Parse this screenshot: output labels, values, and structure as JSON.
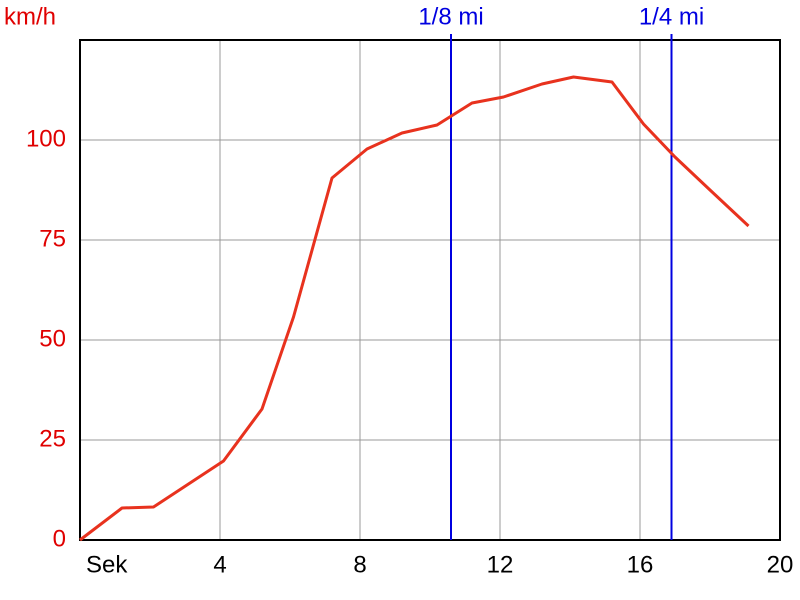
{
  "chart_data": {
    "type": "line",
    "y_label": "km/h",
    "x": [
      0,
      1.2,
      2.1,
      4.1,
      5.2,
      6.1,
      7.2,
      8.2,
      9.2,
      10.2,
      11.2,
      12.1,
      13.2,
      14.1,
      15.2,
      16.1,
      17.0,
      18.0,
      19.1
    ],
    "series": [
      {
        "color": "#e8321e",
        "values": [
          0,
          8,
          8.25,
          19.75,
          32.75,
          55.75,
          90.5,
          97.75,
          101.75,
          103.75,
          109.25,
          110.75,
          114,
          115.75,
          114.5,
          104,
          95.75,
          87.5,
          78.5
        ]
      }
    ],
    "xlim": [
      0,
      20
    ],
    "ylim": [
      0,
      125
    ],
    "xticks": [
      {
        "value": 0,
        "label": "Sek"
      },
      4,
      8,
      12,
      16,
      20
    ],
    "yticks": [
      0,
      25,
      50,
      75,
      100
    ],
    "grid": true,
    "y_color": "#e00000",
    "markers": [
      {
        "value": 10.6,
        "label": "1/8 mi"
      },
      {
        "value": 16.9,
        "label": "1/4 mi"
      }
    ],
    "marker_color": "#0000e0"
  }
}
